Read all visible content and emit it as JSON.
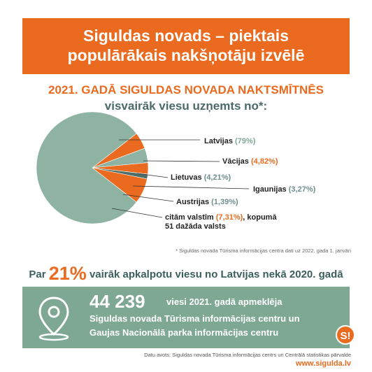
{
  "banner": {
    "line1": "Siguldas novads – piektais",
    "line2": "populārākais nakšņotāju izvēlē"
  },
  "subheading": {
    "line1": "2021. GADĀ SIGULDAS NOVADA NAKTSMĪTNĒS",
    "line2": "visvairāk viesu uzņemts no*:"
  },
  "chart_data": {
    "type": "pie",
    "title": "",
    "slices": [
      {
        "label": "Latvijas",
        "value": 79,
        "value_text": "(79%)",
        "color": "#8fb3a2"
      },
      {
        "label": "Vācijas",
        "value": 4.82,
        "value_text": "(4,82%)",
        "color": "#ea6b1f"
      },
      {
        "label": "Lietuvas",
        "value": 4.21,
        "value_text": "(4,21%)",
        "color": "#8fb3a2"
      },
      {
        "label": "Igaunijas",
        "value": 3.27,
        "value_text": "(3,27%)",
        "color": "#ea6b1f"
      },
      {
        "label": "Austrijas",
        "value": 1.39,
        "value_text": "(1,39%)",
        "color": "#4d6e69"
      },
      {
        "label": "citām valstīm",
        "value": 7.31,
        "value_text": "(7,31%)",
        "color": "#ea6b1f",
        "extra": ", kopumā",
        "extra2": "51 dažāda valsts"
      }
    ]
  },
  "note": "* Siguldas novada Tūrisma informācijas centra dati uz 2022. gada 1. janvāri",
  "headline": {
    "prefix": "Par",
    "big": "21%",
    "suffix": "vairāk apkalpotu viesu no Latvijas nekā 2020. gadā"
  },
  "visitors": {
    "count": "44 239",
    "rest": "viesi 2021. gadā apmeklēja",
    "line2": "Siguldas novada Tūrisma informācijas centru un",
    "line3": "Gaujas Nacionālā parka informācijas centru"
  },
  "logo": {
    "text": "S!",
    "icon": "location-pin-icon"
  },
  "source": "Datu avots: Siguldas novada Tūrisma informācijas centrs un Centrālā statistikas pārvalde",
  "website": "www.sigulda.lv"
}
